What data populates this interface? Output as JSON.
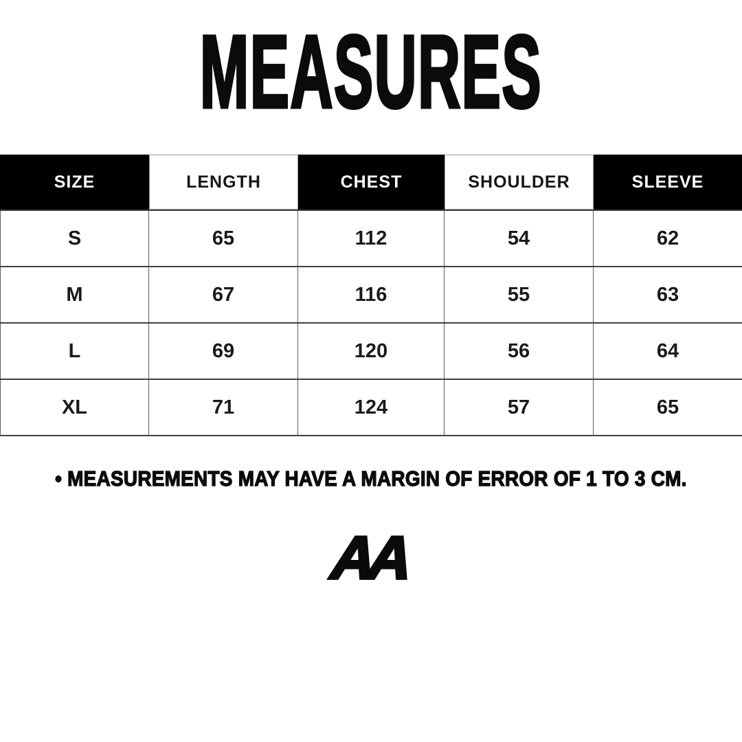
{
  "title": "MEASURES",
  "table": {
    "headers": [
      "SIZE",
      "LENGTH",
      "CHEST",
      "SHOULDER",
      "SLEEVE"
    ],
    "header_styles": [
      "dark",
      "light",
      "dark",
      "light",
      "dark"
    ],
    "rows": [
      [
        "S",
        "65",
        "112",
        "54",
        "62"
      ],
      [
        "M",
        "67",
        "116",
        "55",
        "63"
      ],
      [
        "L",
        "69",
        "120",
        "56",
        "64"
      ],
      [
        "XL",
        "71",
        "124",
        "57",
        "65"
      ]
    ]
  },
  "note": "• MEASUREMENTS MAY HAVE A MARGIN OF ERROR OF 1 TO 3 CM.",
  "logo": "AA",
  "colors": {
    "background": "#ffffff",
    "header_dark_bg": "#000000",
    "header_dark_text": "#ffffff",
    "header_light_bg": "#ffffff",
    "header_light_text": "#161616",
    "cell_text": "#1a1a1a",
    "border": "#4a4a4a"
  }
}
